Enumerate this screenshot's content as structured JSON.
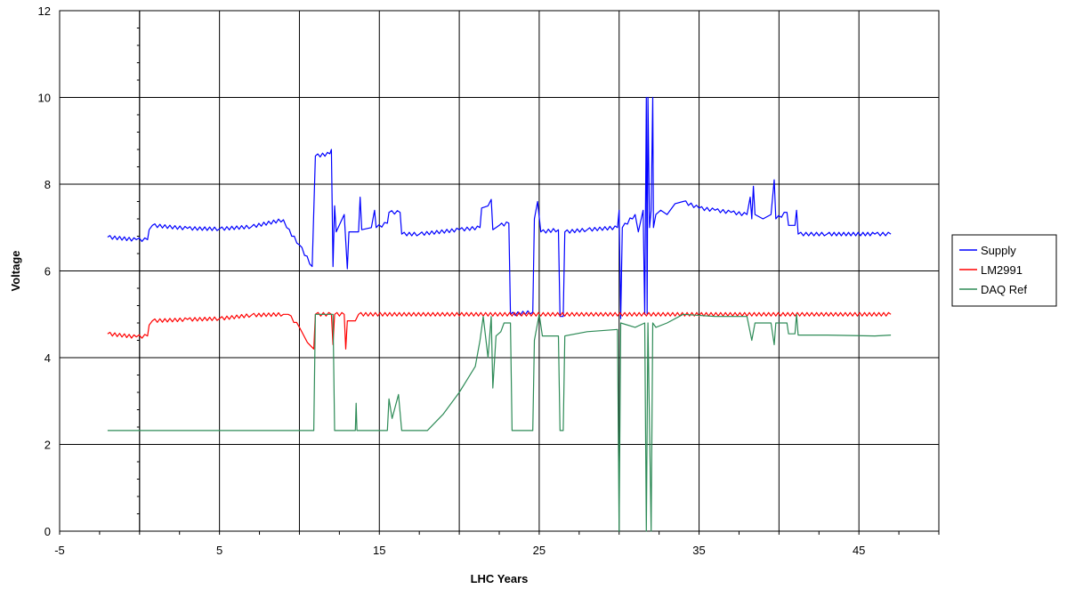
{
  "chart_data": {
    "type": "line",
    "title": "",
    "xlabel": "LHC Years",
    "ylabel": "Voltage",
    "xlim": [
      -5,
      50
    ],
    "ylim": [
      0,
      12
    ],
    "x_ticks": [
      -5,
      5,
      15,
      25,
      35,
      45
    ],
    "x_tick_labels": [
      "-5",
      "5",
      "15",
      "25",
      "35",
      "45"
    ],
    "y_ticks": [
      0,
      2,
      4,
      6,
      8,
      10,
      12
    ],
    "y_tick_labels": [
      "0",
      "2",
      "4",
      "6",
      "8",
      "10",
      "12"
    ],
    "x_gridlines": [
      0,
      5,
      10,
      15,
      20,
      25,
      30,
      35,
      40,
      45,
      50
    ],
    "y_gridlines": [
      2,
      4,
      6,
      8,
      10,
      12
    ],
    "grid": true,
    "legend_position": "right",
    "series": [
      {
        "name": "Supply",
        "color": "#0000ff",
        "ripple": 0.04,
        "points": [
          [
            -2.0,
            6.78
          ],
          [
            -0.2,
            6.72
          ],
          [
            0.5,
            6.72
          ],
          [
            0.6,
            6.95
          ],
          [
            0.8,
            7.05
          ],
          [
            3.0,
            6.98
          ],
          [
            5.0,
            6.97
          ],
          [
            7.0,
            7.02
          ],
          [
            9.0,
            7.18
          ],
          [
            9.2,
            7.0
          ],
          [
            10.0,
            6.6
          ],
          [
            10.8,
            6.1
          ],
          [
            11.0,
            8.65
          ],
          [
            11.9,
            8.7
          ],
          [
            12.0,
            8.8
          ],
          [
            12.1,
            6.1
          ],
          [
            12.2,
            7.5
          ],
          [
            12.3,
            6.9
          ],
          [
            12.8,
            7.3
          ],
          [
            13.0,
            6.05
          ],
          [
            13.1,
            6.9
          ],
          [
            13.7,
            6.9
          ],
          [
            13.8,
            7.7
          ],
          [
            13.9,
            6.95
          ],
          [
            14.5,
            7.0
          ],
          [
            14.7,
            7.4
          ],
          [
            14.8,
            7.0
          ],
          [
            15.5,
            7.1
          ],
          [
            15.6,
            7.35
          ],
          [
            16.3,
            7.35
          ],
          [
            16.4,
            6.85
          ],
          [
            17.5,
            6.85
          ],
          [
            20.0,
            6.95
          ],
          [
            21.3,
            7.0
          ],
          [
            21.4,
            7.45
          ],
          [
            21.8,
            7.5
          ],
          [
            22.0,
            7.65
          ],
          [
            22.1,
            6.95
          ],
          [
            22.5,
            7.05
          ],
          [
            23.1,
            7.1
          ],
          [
            23.2,
            5.0
          ],
          [
            24.6,
            5.05
          ],
          [
            24.7,
            7.2
          ],
          [
            24.9,
            7.6
          ],
          [
            25.1,
            6.9
          ],
          [
            26.2,
            6.95
          ],
          [
            26.3,
            4.95
          ],
          [
            26.5,
            4.95
          ],
          [
            26.6,
            6.9
          ],
          [
            28.0,
            6.95
          ],
          [
            29.9,
            7.0
          ],
          [
            30.0,
            7.4
          ],
          [
            30.1,
            4.9
          ],
          [
            30.2,
            7.0
          ],
          [
            31.0,
            7.3
          ],
          [
            31.2,
            6.9
          ],
          [
            31.5,
            7.4
          ],
          [
            31.6,
            5.0
          ],
          [
            31.7,
            10.0
          ],
          [
            31.75,
            5.0
          ],
          [
            31.8,
            10.0
          ],
          [
            31.9,
            7.0
          ],
          [
            32.0,
            7.4
          ],
          [
            32.1,
            10.0
          ],
          [
            32.15,
            7.0
          ],
          [
            32.3,
            7.3
          ],
          [
            32.6,
            7.4
          ],
          [
            33.0,
            7.3
          ],
          [
            33.5,
            7.55
          ],
          [
            34.0,
            7.6
          ],
          [
            35.0,
            7.45
          ],
          [
            36.0,
            7.4
          ],
          [
            37.0,
            7.35
          ],
          [
            38.0,
            7.3
          ],
          [
            38.2,
            7.7
          ],
          [
            38.3,
            7.2
          ],
          [
            38.4,
            7.95
          ],
          [
            38.5,
            7.3
          ],
          [
            39.0,
            7.2
          ],
          [
            39.5,
            7.3
          ],
          [
            39.7,
            8.1
          ],
          [
            39.8,
            7.2
          ],
          [
            40.5,
            7.35
          ],
          [
            40.6,
            7.05
          ],
          [
            41.0,
            7.05
          ],
          [
            41.1,
            7.4
          ],
          [
            41.2,
            6.85
          ],
          [
            43.0,
            6.85
          ],
          [
            46.0,
            6.85
          ],
          [
            47.0,
            6.85
          ]
        ]
      },
      {
        "name": "LM2991",
        "color": "#ff0000",
        "ripple": 0.04,
        "points": [
          [
            -2.0,
            4.55
          ],
          [
            -0.2,
            4.48
          ],
          [
            0.5,
            4.5
          ],
          [
            0.6,
            4.75
          ],
          [
            0.8,
            4.85
          ],
          [
            3.0,
            4.88
          ],
          [
            5.0,
            4.9
          ],
          [
            7.0,
            4.98
          ],
          [
            9.0,
            5.0
          ],
          [
            9.3,
            5.0
          ],
          [
            10.0,
            4.7
          ],
          [
            10.5,
            4.35
          ],
          [
            10.9,
            4.2
          ],
          [
            11.0,
            5.0
          ],
          [
            12.0,
            5.0
          ],
          [
            12.1,
            4.3
          ],
          [
            12.2,
            5.0
          ],
          [
            12.8,
            5.0
          ],
          [
            12.9,
            4.2
          ],
          [
            13.0,
            4.85
          ],
          [
            13.5,
            4.85
          ],
          [
            13.7,
            5.0
          ],
          [
            47.0,
            5.0
          ]
        ]
      },
      {
        "name": "DAQ Ref",
        "color": "#2e8b57",
        "ripple": 0.0,
        "points": [
          [
            -2.0,
            2.32
          ],
          [
            10.9,
            2.32
          ],
          [
            11.0,
            5.0
          ],
          [
            12.1,
            5.0
          ],
          [
            12.2,
            2.32
          ],
          [
            13.5,
            2.32
          ],
          [
            13.55,
            2.95
          ],
          [
            13.6,
            2.32
          ],
          [
            15.5,
            2.32
          ],
          [
            15.6,
            3.05
          ],
          [
            15.8,
            2.6
          ],
          [
            16.2,
            3.15
          ],
          [
            16.4,
            2.32
          ],
          [
            18.0,
            2.32
          ],
          [
            19.0,
            2.7
          ],
          [
            20.0,
            3.2
          ],
          [
            20.5,
            3.5
          ],
          [
            21.0,
            3.8
          ],
          [
            21.3,
            4.4
          ],
          [
            21.5,
            4.95
          ],
          [
            21.8,
            4.0
          ],
          [
            22.0,
            4.95
          ],
          [
            22.1,
            3.3
          ],
          [
            22.3,
            4.5
          ],
          [
            22.6,
            4.6
          ],
          [
            22.8,
            4.8
          ],
          [
            23.2,
            4.8
          ],
          [
            23.3,
            2.32
          ],
          [
            24.6,
            2.32
          ],
          [
            24.7,
            4.4
          ],
          [
            25.0,
            5.0
          ],
          [
            25.2,
            4.5
          ],
          [
            26.2,
            4.5
          ],
          [
            26.3,
            2.32
          ],
          [
            26.5,
            2.32
          ],
          [
            26.6,
            4.5
          ],
          [
            28.0,
            4.6
          ],
          [
            29.9,
            4.65
          ],
          [
            30.0,
            0.0
          ],
          [
            30.1,
            4.8
          ],
          [
            31.0,
            4.7
          ],
          [
            31.6,
            4.8
          ],
          [
            31.7,
            0.0
          ],
          [
            31.8,
            4.8
          ],
          [
            32.0,
            0.0
          ],
          [
            32.1,
            4.8
          ],
          [
            32.3,
            4.7
          ],
          [
            33.0,
            4.8
          ],
          [
            34.0,
            5.0
          ],
          [
            36.0,
            4.95
          ],
          [
            38.0,
            4.95
          ],
          [
            38.3,
            4.4
          ],
          [
            38.5,
            4.8
          ],
          [
            39.5,
            4.8
          ],
          [
            39.7,
            4.3
          ],
          [
            39.8,
            4.8
          ],
          [
            40.5,
            4.8
          ],
          [
            40.6,
            4.55
          ],
          [
            41.0,
            4.55
          ],
          [
            41.1,
            5.0
          ],
          [
            41.2,
            4.52
          ],
          [
            43.0,
            4.52
          ],
          [
            46.0,
            4.5
          ],
          [
            47.0,
            4.52
          ]
        ]
      }
    ]
  }
}
